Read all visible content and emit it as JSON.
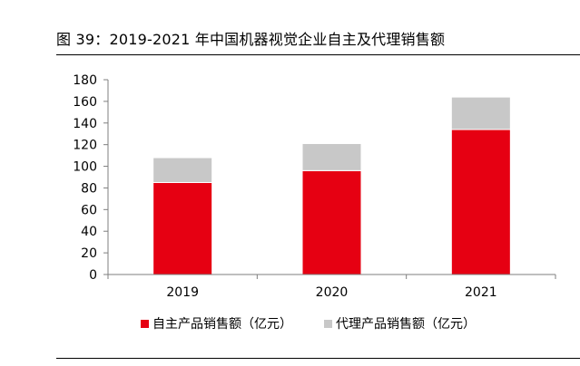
{
  "figure": {
    "title": "图 39：2019-2021 年中国机器视觉企业自主及代理销售额"
  },
  "chart_data": {
    "type": "bar",
    "stacked": true,
    "categories": [
      "2019",
      "2020",
      "2021"
    ],
    "series": [
      {
        "name": "自主产品销售额（亿元）",
        "values": [
          85,
          96,
          134
        ],
        "color": "#e60012"
      },
      {
        "name": "代理产品销售额（亿元）",
        "values": [
          23,
          25,
          30
        ],
        "color": "#c8c8c8"
      }
    ],
    "y_ticks": [
      "0",
      "20",
      "40",
      "60",
      "80",
      "100",
      "120",
      "140",
      "160",
      "180"
    ],
    "ylim": [
      0,
      180
    ],
    "grid": false,
    "legend_position": "bottom"
  }
}
